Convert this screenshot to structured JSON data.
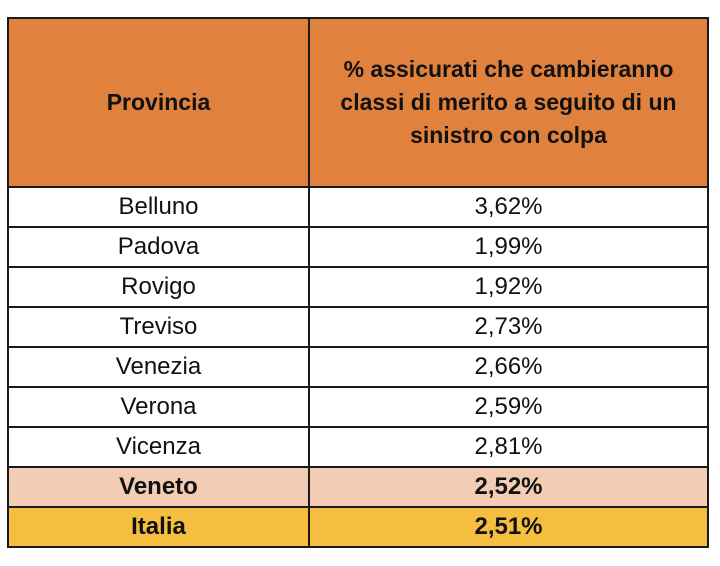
{
  "table": {
    "headers": {
      "col1": "Provincia",
      "col2": "% assicurati che cambieranno classi di merito a seguito di un sinistro con colpa"
    },
    "rows": [
      {
        "provincia": "Belluno",
        "percentuale": "3,62%"
      },
      {
        "provincia": "Padova",
        "percentuale": "1,99%"
      },
      {
        "provincia": "Rovigo",
        "percentuale": "1,92%"
      },
      {
        "provincia": "Treviso",
        "percentuale": "2,73%"
      },
      {
        "provincia": "Venezia",
        "percentuale": "2,66%"
      },
      {
        "provincia": "Verona",
        "percentuale": "2,59%"
      },
      {
        "provincia": "Vicenza",
        "percentuale": "2,81%"
      }
    ],
    "region_total": {
      "provincia": "Veneto",
      "percentuale": "2,52%"
    },
    "national_total": {
      "provincia": "Italia",
      "percentuale": "2,51%"
    }
  },
  "colors": {
    "header": "#e0823e",
    "region_row": "#f2cdb3",
    "national_row": "#f5be3e"
  }
}
